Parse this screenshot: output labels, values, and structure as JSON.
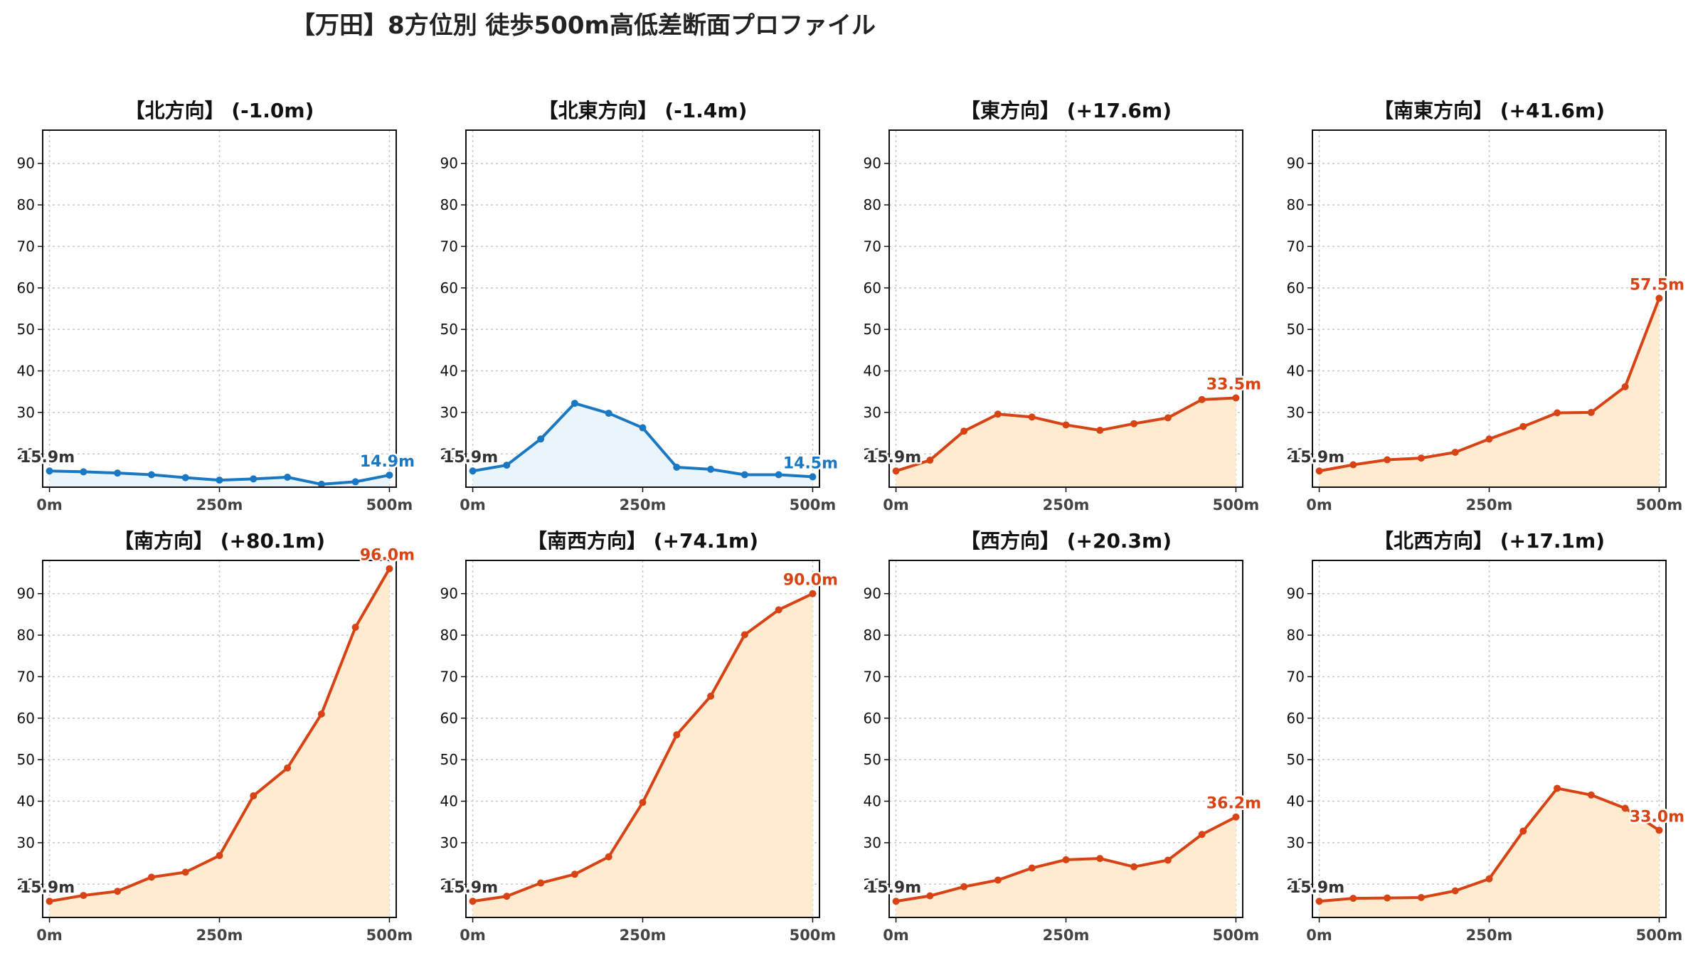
{
  "title": "【万田】8方位別 徒歩500m高低差断面プロファイル",
  "chart_data": [
    {
      "type": "line",
      "title": "【北方向】 (-1.0m)",
      "start_label": "15.9m",
      "end_label": "14.9m",
      "trend": "down",
      "x": [
        0,
        50,
        100,
        150,
        200,
        250,
        300,
        350,
        400,
        450,
        500
      ],
      "y": [
        15.9,
        15.7,
        15.4,
        15.0,
        14.3,
        13.7,
        14.0,
        14.4,
        12.7,
        13.3,
        14.9
      ],
      "xticks": [
        "0m",
        "250m",
        "500m"
      ],
      "xtick_values": [
        0,
        250,
        500
      ],
      "yticks": [
        20,
        30,
        40,
        50,
        60,
        70,
        80,
        90
      ],
      "ylim": [
        12,
        98
      ],
      "grid": true
    },
    {
      "type": "line",
      "title": "【北東方向】 (-1.4m)",
      "start_label": "15.9m",
      "end_label": "14.5m",
      "trend": "down",
      "x": [
        0,
        50,
        100,
        150,
        200,
        250,
        300,
        350,
        400,
        450,
        500
      ],
      "y": [
        15.9,
        17.3,
        23.6,
        32.2,
        29.8,
        26.3,
        16.8,
        16.3,
        15.0,
        15.0,
        14.5
      ],
      "xticks": [
        "0m",
        "250m",
        "500m"
      ],
      "xtick_values": [
        0,
        250,
        500
      ],
      "yticks": [
        20,
        30,
        40,
        50,
        60,
        70,
        80,
        90
      ],
      "ylim": [
        12,
        98
      ],
      "grid": true
    },
    {
      "type": "line",
      "title": "【東方向】 (+17.6m)",
      "start_label": "15.9m",
      "end_label": "33.5m",
      "trend": "up",
      "x": [
        0,
        50,
        100,
        150,
        200,
        250,
        300,
        350,
        400,
        450,
        500
      ],
      "y": [
        15.9,
        18.5,
        25.5,
        29.6,
        28.9,
        27.0,
        25.7,
        27.3,
        28.7,
        33.1,
        33.5
      ],
      "xticks": [
        "0m",
        "250m",
        "500m"
      ],
      "xtick_values": [
        0,
        250,
        500
      ],
      "yticks": [
        20,
        30,
        40,
        50,
        60,
        70,
        80,
        90
      ],
      "ylim": [
        12,
        98
      ],
      "grid": true
    },
    {
      "type": "line",
      "title": "【南東方向】 (+41.6m)",
      "start_label": "15.9m",
      "end_label": "57.5m",
      "trend": "up",
      "x": [
        0,
        50,
        100,
        150,
        200,
        250,
        300,
        350,
        400,
        450,
        500
      ],
      "y": [
        15.9,
        17.4,
        18.6,
        19.0,
        20.4,
        23.6,
        26.6,
        29.9,
        30.0,
        36.2,
        57.5
      ],
      "xticks": [
        "0m",
        "250m",
        "500m"
      ],
      "xtick_values": [
        0,
        250,
        500
      ],
      "yticks": [
        20,
        30,
        40,
        50,
        60,
        70,
        80,
        90
      ],
      "ylim": [
        12,
        98
      ],
      "grid": true
    },
    {
      "type": "line",
      "title": "【南方向】 (+80.1m)",
      "start_label": "15.9m",
      "end_label": "96.0m",
      "trend": "up",
      "x": [
        0,
        50,
        100,
        150,
        200,
        250,
        300,
        350,
        400,
        450,
        500
      ],
      "y": [
        15.9,
        17.3,
        18.3,
        21.7,
        22.9,
        26.9,
        41.3,
        48.0,
        61.0,
        81.9,
        96.0
      ],
      "xticks": [
        "0m",
        "250m",
        "500m"
      ],
      "xtick_values": [
        0,
        250,
        500
      ],
      "yticks": [
        20,
        30,
        40,
        50,
        60,
        70,
        80,
        90
      ],
      "ylim": [
        12,
        98
      ],
      "grid": true
    },
    {
      "type": "line",
      "title": "【南西方向】 (+74.1m)",
      "start_label": "15.9m",
      "end_label": "90.0m",
      "trend": "up",
      "x": [
        0,
        50,
        100,
        150,
        200,
        250,
        300,
        350,
        400,
        450,
        500
      ],
      "y": [
        15.9,
        17.1,
        20.3,
        22.4,
        26.6,
        39.7,
        56.0,
        65.3,
        80.1,
        86.1,
        90.0
      ],
      "xticks": [
        "0m",
        "250m",
        "500m"
      ],
      "xtick_values": [
        0,
        250,
        500
      ],
      "yticks": [
        20,
        30,
        40,
        50,
        60,
        70,
        80,
        90
      ],
      "ylim": [
        12,
        98
      ],
      "grid": true
    },
    {
      "type": "line",
      "title": "【西方向】 (+20.3m)",
      "start_label": "15.9m",
      "end_label": "36.2m",
      "trend": "up",
      "x": [
        0,
        50,
        100,
        150,
        200,
        250,
        300,
        350,
        400,
        450,
        500
      ],
      "y": [
        15.9,
        17.2,
        19.4,
        21.0,
        23.9,
        25.9,
        26.2,
        24.2,
        25.8,
        32.0,
        36.2
      ],
      "xticks": [
        "0m",
        "250m",
        "500m"
      ],
      "xtick_values": [
        0,
        250,
        500
      ],
      "yticks": [
        20,
        30,
        40,
        50,
        60,
        70,
        80,
        90
      ],
      "ylim": [
        12,
        98
      ],
      "grid": true
    },
    {
      "type": "line",
      "title": "【北西方向】 (+17.1m)",
      "start_label": "15.9m",
      "end_label": "33.0m",
      "trend": "up",
      "x": [
        0,
        50,
        100,
        150,
        200,
        250,
        300,
        350,
        400,
        450,
        500
      ],
      "y": [
        15.9,
        16.6,
        16.7,
        16.8,
        18.4,
        21.3,
        32.8,
        43.1,
        41.5,
        38.3,
        33.0
      ],
      "xticks": [
        "0m",
        "250m",
        "500m"
      ],
      "xtick_values": [
        0,
        250,
        500
      ],
      "yticks": [
        20,
        30,
        40,
        50,
        60,
        70,
        80,
        90
      ],
      "ylim": [
        12,
        98
      ],
      "grid": true
    }
  ],
  "colors": {
    "up_line": "#d84315",
    "up_fill": "#ffecd0",
    "down_line": "#1a78c2",
    "down_fill": "#e9f5fb",
    "start_label": "#333333",
    "grid": "#c8c8c8",
    "axis": "#111111",
    "tick_text": "#111111",
    "xtick_text": "#444444"
  }
}
